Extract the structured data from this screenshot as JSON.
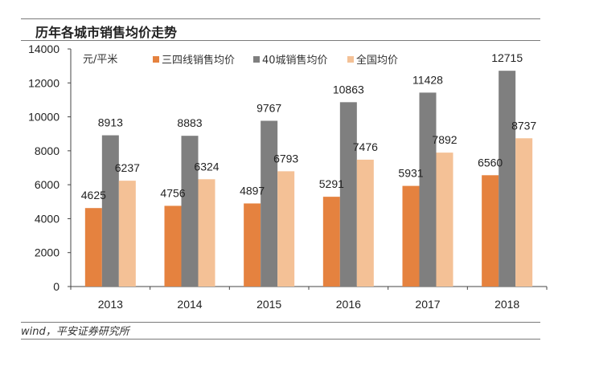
{
  "chart_data": {
    "type": "bar",
    "title": "历年各城市销售均价走势",
    "ylabel": "元/平米",
    "xlabel": "",
    "ylim": [
      0,
      14000
    ],
    "yticks": [
      "0",
      "2000",
      "4000",
      "6000",
      "8000",
      "10000",
      "12000",
      "14000"
    ],
    "categories": [
      "2013",
      "2014",
      "2015",
      "2016",
      "2017",
      "2018"
    ],
    "legend_position": "top",
    "grid": false,
    "series": [
      {
        "name": "三四线销售均价",
        "color": "#e5823f",
        "values": [
          4625,
          4756,
          4897,
          5291,
          5931,
          6560
        ]
      },
      {
        "name": "40城销售均价",
        "color": "#7f7f7f",
        "values": [
          8913,
          8883,
          9767,
          10863,
          11428,
          12715
        ]
      },
      {
        "name": "全国均价",
        "color": "#f4c196",
        "values": [
          6237,
          6324,
          6793,
          7476,
          7892,
          8737
        ]
      }
    ],
    "source": "wind，平安证券研究所"
  }
}
